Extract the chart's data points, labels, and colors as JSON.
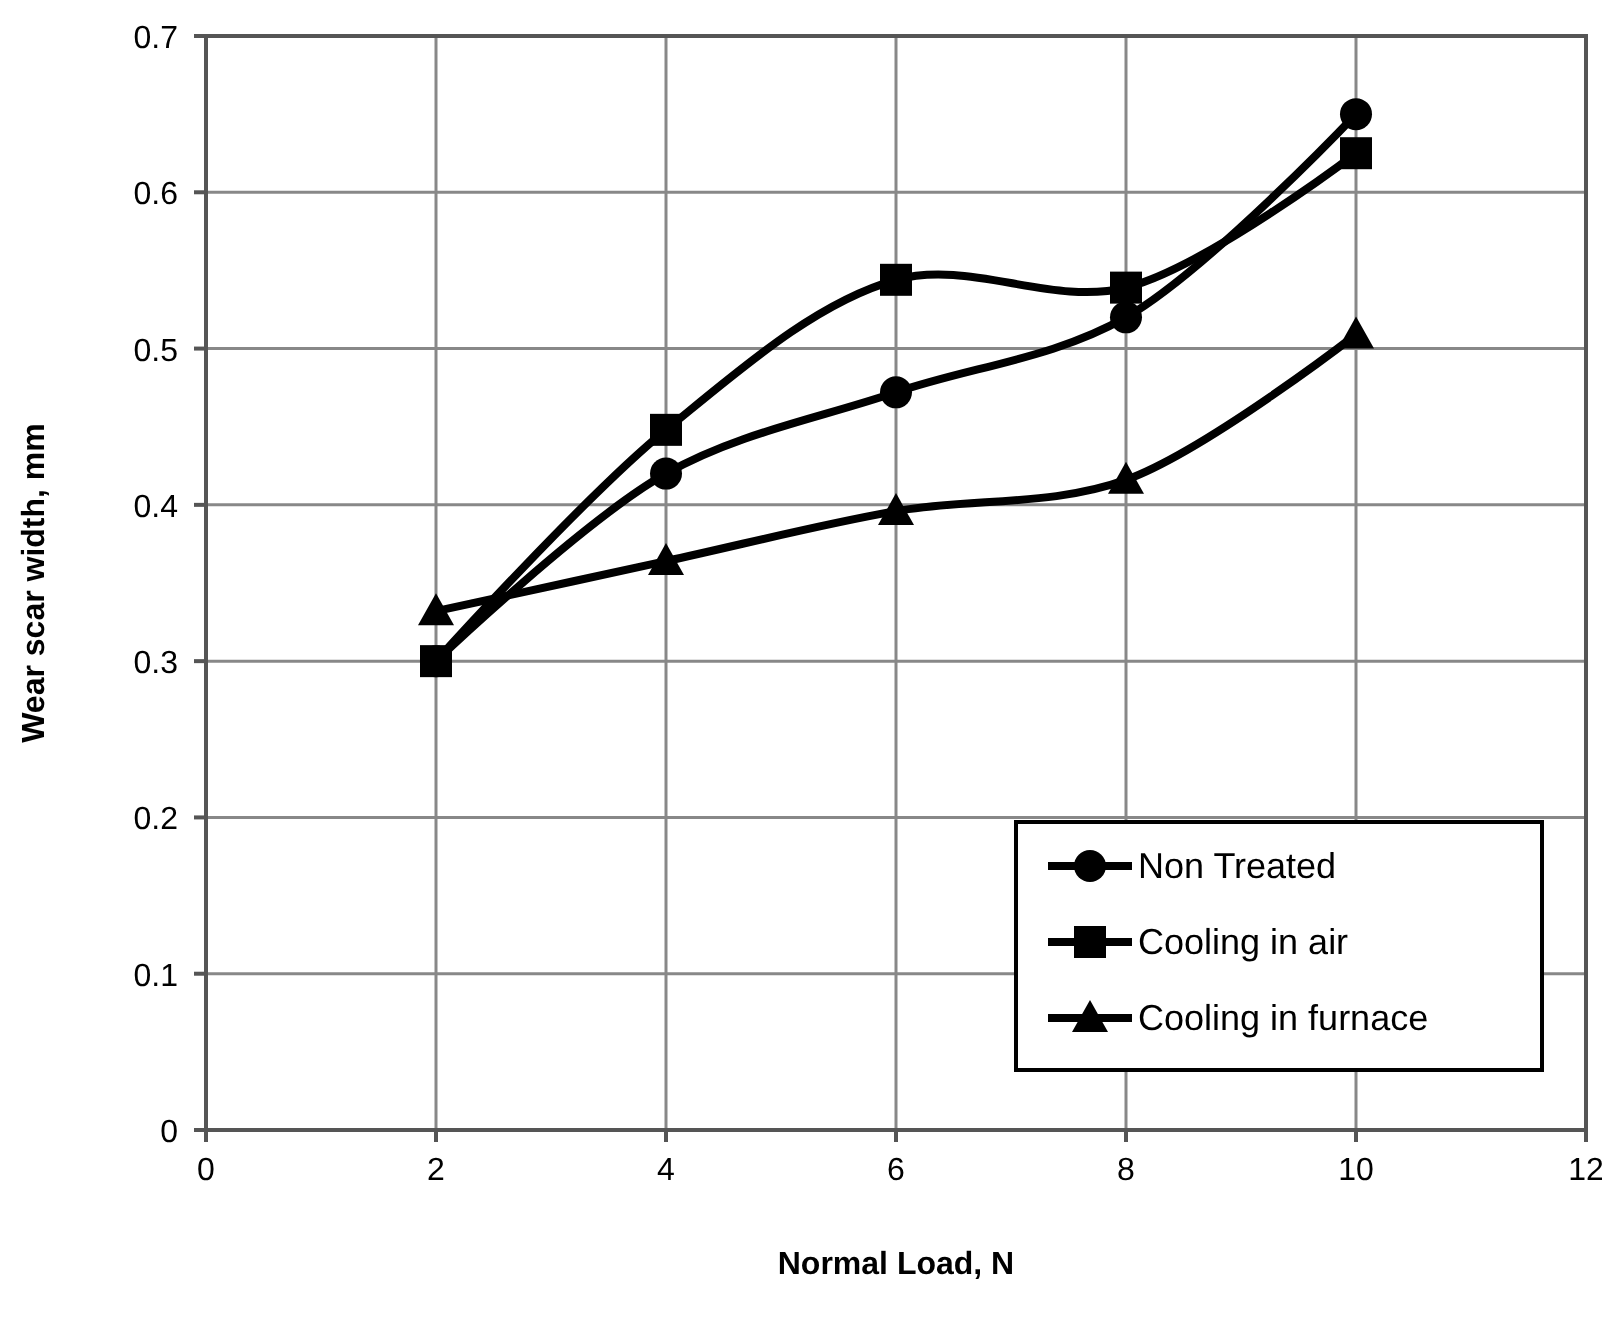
{
  "chart_data": {
    "type": "line",
    "xlabel": "Normal Load, N",
    "ylabel": "Wear scar width, mm",
    "x": [
      2,
      4,
      6,
      8,
      10
    ],
    "series": [
      {
        "name": "Non Treated",
        "color": "#000000",
        "marker": "circle",
        "values": [
          0.3,
          0.42,
          0.472,
          0.52,
          0.65
        ]
      },
      {
        "name": "Cooling in air",
        "color": "#000000",
        "marker": "square",
        "values": [
          0.3,
          0.448,
          0.544,
          0.539,
          0.625
        ]
      },
      {
        "name": "Cooling in furnace",
        "color": "#000000",
        "marker": "triangle",
        "values": [
          0.332,
          0.364,
          0.396,
          0.416,
          0.509
        ]
      }
    ],
    "xlim": [
      0,
      12
    ],
    "xticks": [
      0,
      2,
      4,
      6,
      8,
      10,
      12
    ],
    "ylim": [
      0,
      0.7
    ],
    "yticks": [
      0,
      0.1,
      0.2,
      0.3,
      0.4,
      0.5,
      0.6,
      0.7
    ],
    "grid": true,
    "legend": "bottom right",
    "line_style": "solid"
  }
}
